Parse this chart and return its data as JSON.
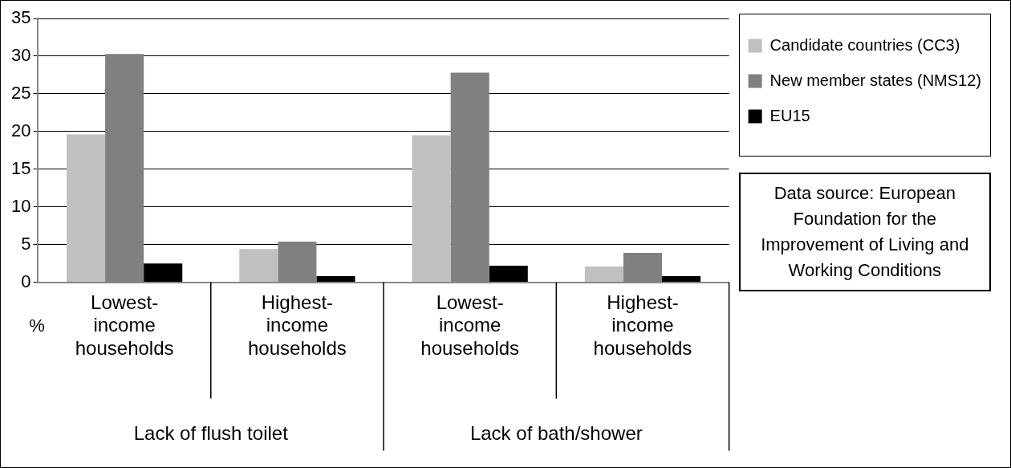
{
  "chart_data": {
    "type": "bar",
    "ylabel": "%",
    "categories": [
      "Lowest-income households",
      "Highest-income households",
      "Lowest-income households",
      "Highest-income households"
    ],
    "series": [
      {
        "name": "Candidate countries (CC3)",
        "color": "#c0c0c0",
        "values": [
          19.6,
          4.4,
          19.5,
          2.1
        ]
      },
      {
        "name": "New member states (NMS12)",
        "color": "#808080",
        "values": [
          30.3,
          5.4,
          27.8,
          3.9
        ]
      },
      {
        "name": "EU15",
        "color": "#000000",
        "values": [
          2.5,
          0.8,
          2.2,
          0.8
        ]
      }
    ],
    "ylim": [
      0,
      35
    ],
    "yticks": [
      0,
      5,
      10,
      15,
      20,
      25,
      30,
      35
    ],
    "grid": "y",
    "legend": "right",
    "annotations": [
      "Lack of flush toilet",
      "Lack of bath/shower",
      "Data source: European Foundation for the Improvement of Living and Working Conditions"
    ]
  }
}
